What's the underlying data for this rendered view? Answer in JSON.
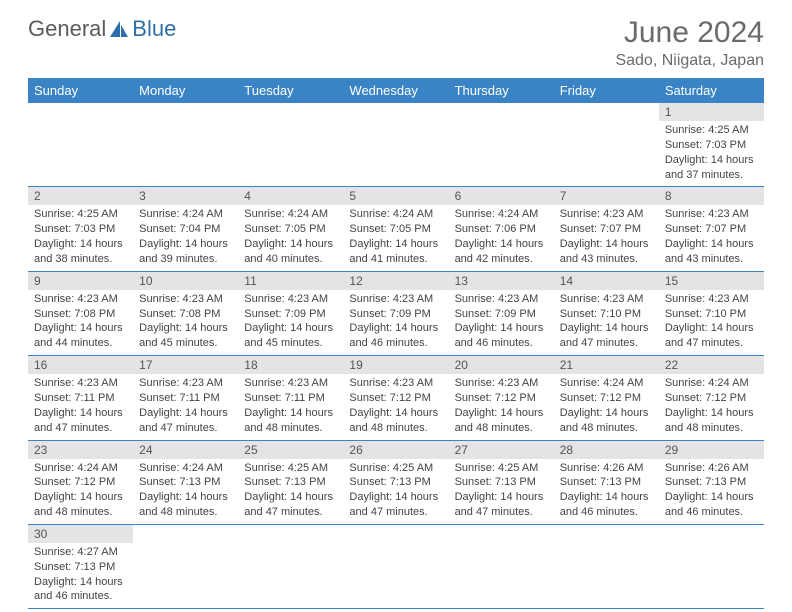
{
  "brand": {
    "part1": "General",
    "part2": "Blue"
  },
  "month_title": "June 2024",
  "location": "Sado, Niigata, Japan",
  "colors": {
    "header_bg": "#3a84c5",
    "header_fg": "#ffffff",
    "daynum_bg": "#e4e4e4",
    "row_border": "#3a84c5",
    "title_color": "#6b6b6b",
    "text_color": "#444444"
  },
  "weekdays": [
    "Sunday",
    "Monday",
    "Tuesday",
    "Wednesday",
    "Thursday",
    "Friday",
    "Saturday"
  ],
  "days": {
    "1": {
      "sunrise": "4:25 AM",
      "sunset": "7:03 PM",
      "daylight": "14 hours and 37 minutes."
    },
    "2": {
      "sunrise": "4:25 AM",
      "sunset": "7:03 PM",
      "daylight": "14 hours and 38 minutes."
    },
    "3": {
      "sunrise": "4:24 AM",
      "sunset": "7:04 PM",
      "daylight": "14 hours and 39 minutes."
    },
    "4": {
      "sunrise": "4:24 AM",
      "sunset": "7:05 PM",
      "daylight": "14 hours and 40 minutes."
    },
    "5": {
      "sunrise": "4:24 AM",
      "sunset": "7:05 PM",
      "daylight": "14 hours and 41 minutes."
    },
    "6": {
      "sunrise": "4:24 AM",
      "sunset": "7:06 PM",
      "daylight": "14 hours and 42 minutes."
    },
    "7": {
      "sunrise": "4:23 AM",
      "sunset": "7:07 PM",
      "daylight": "14 hours and 43 minutes."
    },
    "8": {
      "sunrise": "4:23 AM",
      "sunset": "7:07 PM",
      "daylight": "14 hours and 43 minutes."
    },
    "9": {
      "sunrise": "4:23 AM",
      "sunset": "7:08 PM",
      "daylight": "14 hours and 44 minutes."
    },
    "10": {
      "sunrise": "4:23 AM",
      "sunset": "7:08 PM",
      "daylight": "14 hours and 45 minutes."
    },
    "11": {
      "sunrise": "4:23 AM",
      "sunset": "7:09 PM",
      "daylight": "14 hours and 45 minutes."
    },
    "12": {
      "sunrise": "4:23 AM",
      "sunset": "7:09 PM",
      "daylight": "14 hours and 46 minutes."
    },
    "13": {
      "sunrise": "4:23 AM",
      "sunset": "7:09 PM",
      "daylight": "14 hours and 46 minutes."
    },
    "14": {
      "sunrise": "4:23 AM",
      "sunset": "7:10 PM",
      "daylight": "14 hours and 47 minutes."
    },
    "15": {
      "sunrise": "4:23 AM",
      "sunset": "7:10 PM",
      "daylight": "14 hours and 47 minutes."
    },
    "16": {
      "sunrise": "4:23 AM",
      "sunset": "7:11 PM",
      "daylight": "14 hours and 47 minutes."
    },
    "17": {
      "sunrise": "4:23 AM",
      "sunset": "7:11 PM",
      "daylight": "14 hours and 47 minutes."
    },
    "18": {
      "sunrise": "4:23 AM",
      "sunset": "7:11 PM",
      "daylight": "14 hours and 48 minutes."
    },
    "19": {
      "sunrise": "4:23 AM",
      "sunset": "7:12 PM",
      "daylight": "14 hours and 48 minutes."
    },
    "20": {
      "sunrise": "4:23 AM",
      "sunset": "7:12 PM",
      "daylight": "14 hours and 48 minutes."
    },
    "21": {
      "sunrise": "4:24 AM",
      "sunset": "7:12 PM",
      "daylight": "14 hours and 48 minutes."
    },
    "22": {
      "sunrise": "4:24 AM",
      "sunset": "7:12 PM",
      "daylight": "14 hours and 48 minutes."
    },
    "23": {
      "sunrise": "4:24 AM",
      "sunset": "7:12 PM",
      "daylight": "14 hours and 48 minutes."
    },
    "24": {
      "sunrise": "4:24 AM",
      "sunset": "7:13 PM",
      "daylight": "14 hours and 48 minutes."
    },
    "25": {
      "sunrise": "4:25 AM",
      "sunset": "7:13 PM",
      "daylight": "14 hours and 47 minutes."
    },
    "26": {
      "sunrise": "4:25 AM",
      "sunset": "7:13 PM",
      "daylight": "14 hours and 47 minutes."
    },
    "27": {
      "sunrise": "4:25 AM",
      "sunset": "7:13 PM",
      "daylight": "14 hours and 47 minutes."
    },
    "28": {
      "sunrise": "4:26 AM",
      "sunset": "7:13 PM",
      "daylight": "14 hours and 46 minutes."
    },
    "29": {
      "sunrise": "4:26 AM",
      "sunset": "7:13 PM",
      "daylight": "14 hours and 46 minutes."
    },
    "30": {
      "sunrise": "4:27 AM",
      "sunset": "7:13 PM",
      "daylight": "14 hours and 46 minutes."
    }
  },
  "labels": {
    "sunrise": "Sunrise:",
    "sunset": "Sunset:",
    "daylight": "Daylight:"
  },
  "layout": [
    [
      null,
      null,
      null,
      null,
      null,
      null,
      "1"
    ],
    [
      "2",
      "3",
      "4",
      "5",
      "6",
      "7",
      "8"
    ],
    [
      "9",
      "10",
      "11",
      "12",
      "13",
      "14",
      "15"
    ],
    [
      "16",
      "17",
      "18",
      "19",
      "20",
      "21",
      "22"
    ],
    [
      "23",
      "24",
      "25",
      "26",
      "27",
      "28",
      "29"
    ],
    [
      "30",
      null,
      null,
      null,
      null,
      null,
      null
    ]
  ]
}
